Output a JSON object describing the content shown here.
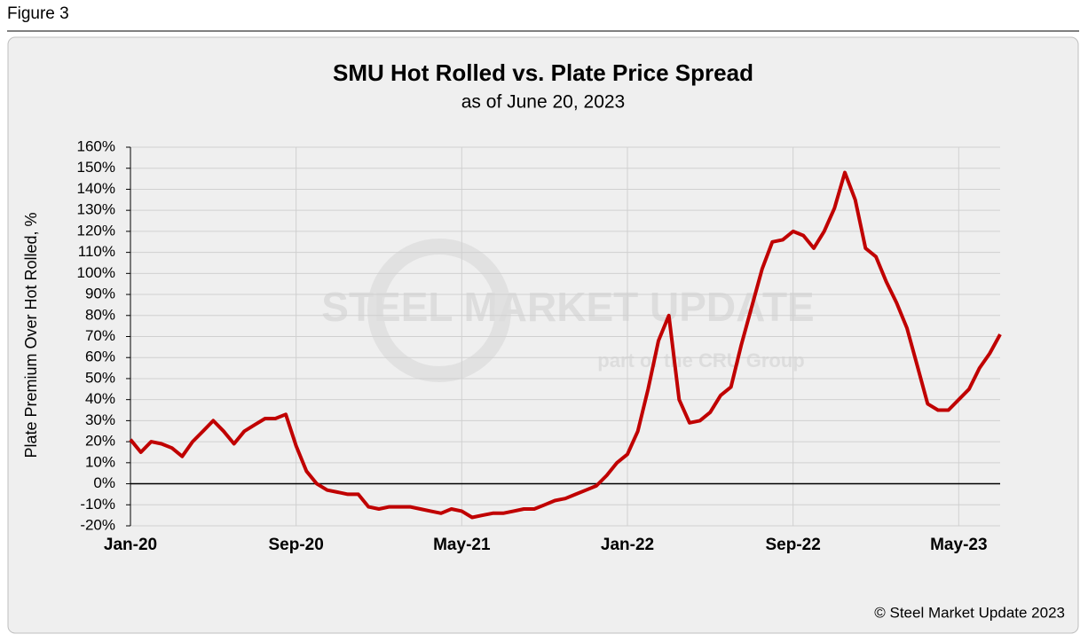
{
  "figure_label": "Figure 3",
  "chart_data": {
    "type": "line",
    "title": "SMU Hot Rolled vs. Plate Price Spread",
    "subtitle": "as of June 20, 2023",
    "y_label": "Plate Premium Over Hot Rolled, %",
    "watermark": {
      "brand": "STEEL MARKET UPDATE",
      "tagline": "part of the CRU Group"
    },
    "source": "© Steel Market Update 2023",
    "categories": [
      "Jan-20",
      null,
      null,
      null,
      null,
      null,
      null,
      null,
      null,
      null,
      null,
      null,
      null,
      null,
      null,
      null,
      "Sep-20",
      null,
      null,
      null,
      null,
      null,
      null,
      null,
      null,
      null,
      null,
      null,
      null,
      null,
      null,
      null,
      "May-21",
      null,
      null,
      null,
      null,
      null,
      null,
      null,
      null,
      null,
      null,
      null,
      null,
      null,
      null,
      null,
      "Jan-22",
      null,
      null,
      null,
      null,
      null,
      null,
      null,
      null,
      null,
      null,
      null,
      null,
      null,
      null,
      null,
      "Sep-22",
      null,
      null,
      null,
      null,
      null,
      null,
      null,
      null,
      null,
      null,
      null,
      null,
      null,
      null,
      null,
      "May-23",
      null,
      null,
      null,
      null
    ],
    "series": [
      {
        "color": "#c00000",
        "values": [
          21,
          15,
          20,
          19,
          17,
          13,
          20,
          25,
          30,
          25,
          19,
          25,
          28,
          31,
          31,
          33,
          18,
          6,
          0,
          -3,
          -4,
          -5,
          -5,
          -11,
          -12,
          -11,
          -11,
          -11,
          -12,
          -13,
          -14,
          -12,
          -13,
          -16,
          -15,
          -14,
          -14,
          -13,
          -12,
          -12,
          -10,
          -8,
          -7,
          -5,
          -3,
          -1,
          4,
          10,
          14,
          25,
          45,
          68,
          80,
          40,
          29,
          30,
          34,
          42,
          46,
          66,
          84,
          102,
          115,
          116,
          120,
          118,
          112,
          120,
          131,
          148,
          135,
          112,
          108,
          96,
          86,
          74,
          56,
          38,
          35,
          35,
          40,
          45,
          55,
          62,
          71
        ]
      }
    ],
    "ylim": [
      -20,
      160
    ],
    "yticks": [
      {
        "value": -20,
        "label": "-20%"
      },
      {
        "value": -10,
        "label": "-10%"
      },
      {
        "value": 0,
        "label": "0%"
      },
      {
        "value": 10,
        "label": "10%"
      },
      {
        "value": 20,
        "label": "20%"
      },
      {
        "value": 30,
        "label": "30%"
      },
      {
        "value": 40,
        "label": "40%"
      },
      {
        "value": 50,
        "label": "50%"
      },
      {
        "value": 60,
        "label": "60%"
      },
      {
        "value": 70,
        "label": "70%"
      },
      {
        "value": 80,
        "label": "80%"
      },
      {
        "value": 90,
        "label": "90%"
      },
      {
        "value": 100,
        "label": "100%"
      },
      {
        "value": 110,
        "label": "110%"
      },
      {
        "value": 120,
        "label": "120%"
      },
      {
        "value": 130,
        "label": "130%"
      },
      {
        "value": 140,
        "label": "140%"
      },
      {
        "value": 150,
        "label": "150%"
      },
      {
        "value": 160,
        "label": "160%"
      }
    ],
    "grid": true
  }
}
